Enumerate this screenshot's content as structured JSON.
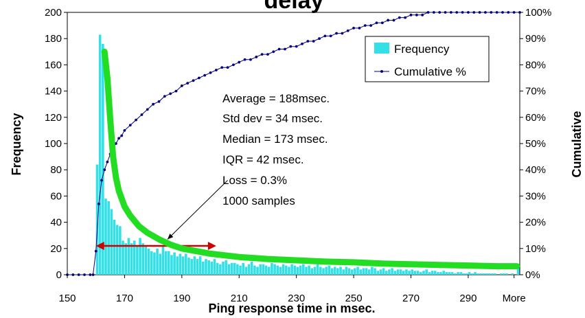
{
  "chart_data": {
    "type": "bar",
    "title": "delay",
    "xlabel": "Ping response time in msec.",
    "ylabel_left": "Frequency",
    "ylabel_right": "Cumulative",
    "x_tick_labels": [
      "150",
      "170",
      "190",
      "210",
      "230",
      "250",
      "270",
      "290",
      "More"
    ],
    "y_left_ticks": [
      "0",
      "20",
      "40",
      "60",
      "80",
      "100",
      "120",
      "140",
      "160",
      "180",
      "200"
    ],
    "y_right_ticks": [
      "0%",
      "10%",
      "20%",
      "30%",
      "40%",
      "50%",
      "60%",
      "70%",
      "80%",
      "90%",
      "100%"
    ],
    "ylim_left": [
      0,
      200
    ],
    "ylim_right": [
      0,
      100
    ],
    "x_range": [
      150,
      308
    ],
    "series": [
      {
        "name": "Frequency",
        "kind": "bar",
        "color": "#33e0e6",
        "x": [
          160,
          161,
          162,
          163,
          164,
          165,
          166,
          167,
          168,
          169,
          170,
          171,
          172,
          173,
          174,
          175,
          176,
          177,
          178,
          179,
          180,
          181,
          182,
          183,
          184,
          185,
          186,
          187,
          188,
          189,
          190,
          191,
          192,
          193,
          194,
          195,
          196,
          197,
          198,
          199,
          200,
          201,
          202,
          203,
          204,
          205,
          206,
          207,
          208,
          209,
          210,
          211,
          212,
          213,
          214,
          215,
          216,
          217,
          218,
          219,
          220,
          221,
          222,
          223,
          224,
          225,
          226,
          227,
          228,
          229,
          230,
          231,
          232,
          233,
          234,
          235,
          236,
          237,
          238,
          239,
          240,
          241,
          242,
          243,
          244,
          245,
          246,
          247,
          248,
          249,
          250,
          251,
          252,
          253,
          254,
          255,
          256,
          257,
          258,
          259,
          260,
          261,
          262,
          263,
          264,
          265,
          266,
          267,
          268,
          269,
          270,
          271,
          272,
          273,
          274,
          275,
          276,
          277,
          278,
          279,
          280,
          281,
          282,
          283,
          284,
          285,
          286,
          287,
          288,
          289,
          290,
          291,
          292,
          293,
          294,
          295,
          296,
          297,
          298,
          299,
          300,
          301,
          302,
          303,
          304,
          305,
          306,
          307
        ],
        "values": [
          84,
          183,
          176,
          58,
          56,
          50,
          42,
          38,
          37,
          26,
          24,
          28,
          24,
          26,
          22,
          28,
          24,
          22,
          20,
          18,
          17,
          20,
          16,
          22,
          18,
          18,
          15,
          17,
          14,
          16,
          14,
          16,
          13,
          12,
          14,
          12,
          14,
          10,
          12,
          11,
          10,
          12,
          9,
          8,
          10,
          11,
          8,
          9,
          9,
          8,
          7,
          9,
          6,
          8,
          10,
          7,
          6,
          8,
          8,
          7,
          6,
          9,
          8,
          7,
          6,
          8,
          7,
          6,
          8,
          7,
          6,
          7,
          8,
          6,
          7,
          5,
          6,
          8,
          6,
          5,
          6,
          7,
          5,
          6,
          5,
          6,
          4,
          6,
          5,
          4,
          5,
          6,
          4,
          5,
          5,
          4,
          6,
          5,
          3,
          4,
          5,
          3,
          4,
          5,
          3,
          4,
          4,
          3,
          4,
          3,
          4,
          3,
          3,
          2,
          3,
          4,
          2,
          3,
          3,
          2,
          2,
          3,
          2,
          2,
          2,
          1,
          2,
          2,
          1,
          1,
          2,
          1,
          2,
          1,
          1,
          1,
          1,
          1,
          1,
          1,
          0,
          1,
          1,
          1,
          0,
          1,
          0,
          5
        ]
      },
      {
        "name": "Cumulative %",
        "kind": "line-markers",
        "axis": "right",
        "color": "#000080",
        "x": [
          150,
          152,
          154,
          156,
          158,
          159,
          160,
          161,
          162,
          163,
          164,
          165,
          166,
          167,
          168,
          169,
          170,
          172,
          174,
          176,
          178,
          180,
          182,
          184,
          186,
          188,
          190,
          192,
          194,
          196,
          198,
          200,
          202,
          204,
          206,
          208,
          210,
          212,
          214,
          216,
          218,
          220,
          222,
          224,
          226,
          228,
          230,
          232,
          234,
          236,
          238,
          240,
          242,
          244,
          246,
          248,
          250,
          252,
          254,
          256,
          258,
          260,
          262,
          264,
          266,
          268,
          270,
          272,
          274,
          276,
          278,
          280,
          282,
          284,
          286,
          288,
          290,
          292,
          294,
          296,
          298,
          300,
          302,
          304,
          306,
          308
        ],
        "values": [
          0,
          0,
          0,
          0,
          0,
          0,
          9,
          27,
          36,
          40,
          43,
          46,
          48,
          50,
          52,
          53,
          55,
          57,
          59,
          61,
          63,
          65,
          66,
          68,
          69,
          70,
          72,
          73,
          74,
          75,
          76,
          77,
          78,
          79,
          79,
          80,
          81,
          82,
          82,
          83,
          84,
          84,
          85,
          86,
          86,
          87,
          87,
          88,
          89,
          89,
          90,
          91,
          91,
          92,
          92,
          93,
          94,
          94,
          95,
          95,
          96,
          96,
          97,
          97,
          98,
          98,
          99,
          99,
          99,
          100,
          100,
          100,
          100,
          100,
          100,
          100,
          100,
          100,
          100,
          100,
          100,
          100,
          100,
          100,
          100,
          100
        ]
      }
    ],
    "legend": {
      "placement": "top-right",
      "entries": [
        "Frequency",
        "Cumulative %"
      ]
    },
    "annotations": {
      "stats": [
        "Average = 188msec.",
        "Std dev = 34 msec.",
        "Median = 173 msec.",
        "IQR = 42 msec.",
        "Loss = 0.3%",
        "1000 samples"
      ],
      "iqr_arrow": {
        "from_x": 160,
        "to_x": 202,
        "y": 22,
        "color": "#cc0000"
      },
      "pointer_from": {
        "x": 206,
        "y": 72
      },
      "pointer_to": {
        "x": 185,
        "y": 27
      },
      "trend_curve": {
        "color": "#22dd22",
        "x": [
          163,
          164,
          165,
          166,
          167,
          168,
          170,
          172,
          175,
          178,
          182,
          186,
          190,
          195,
          200,
          210,
          220,
          230,
          240,
          250,
          260,
          270,
          280,
          290,
          300,
          307
        ],
        "y": [
          170,
          150,
          118,
          90,
          74,
          64,
          52,
          45,
          37,
          32,
          27,
          23,
          20,
          18,
          16,
          13.5,
          12,
          11,
          10,
          9.5,
          8.5,
          8,
          7.5,
          7,
          6.5,
          6.5
        ]
      }
    }
  }
}
